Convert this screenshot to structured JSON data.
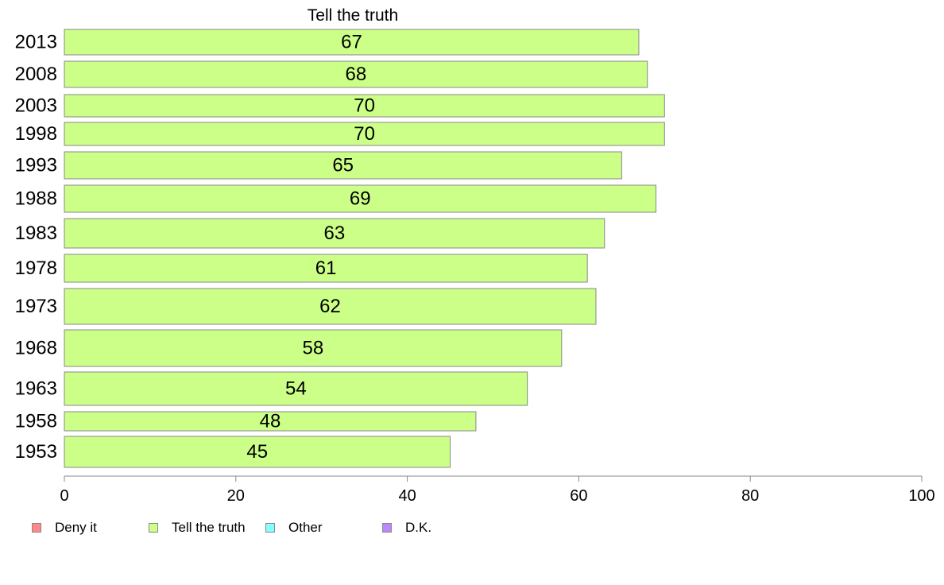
{
  "chart_data": {
    "type": "bar",
    "orientation": "horizontal",
    "title": "Tell the truth",
    "categories": [
      "2013",
      "2008",
      "2003",
      "1998",
      "1993",
      "1988",
      "1983",
      "1978",
      "1973",
      "1968",
      "1963",
      "1958",
      "1953"
    ],
    "series": [
      {
        "name": "Tell the truth",
        "color": "#ccff88",
        "values": [
          67,
          68,
          70,
          70,
          65,
          69,
          63,
          61,
          62,
          58,
          54,
          48,
          45
        ]
      }
    ],
    "xlim": [
      0,
      100
    ],
    "xticks": [
      0,
      20,
      40,
      60,
      80,
      100
    ],
    "grid": false,
    "legend": {
      "placement": "bottom",
      "items": [
        {
          "label": "Deny it",
          "color": "#ff8888"
        },
        {
          "label": "Tell the truth",
          "color": "#ccff88"
        },
        {
          "label": "Other",
          "color": "#88ffff"
        },
        {
          "label": "D.K.",
          "color": "#bb88ff"
        }
      ]
    }
  }
}
